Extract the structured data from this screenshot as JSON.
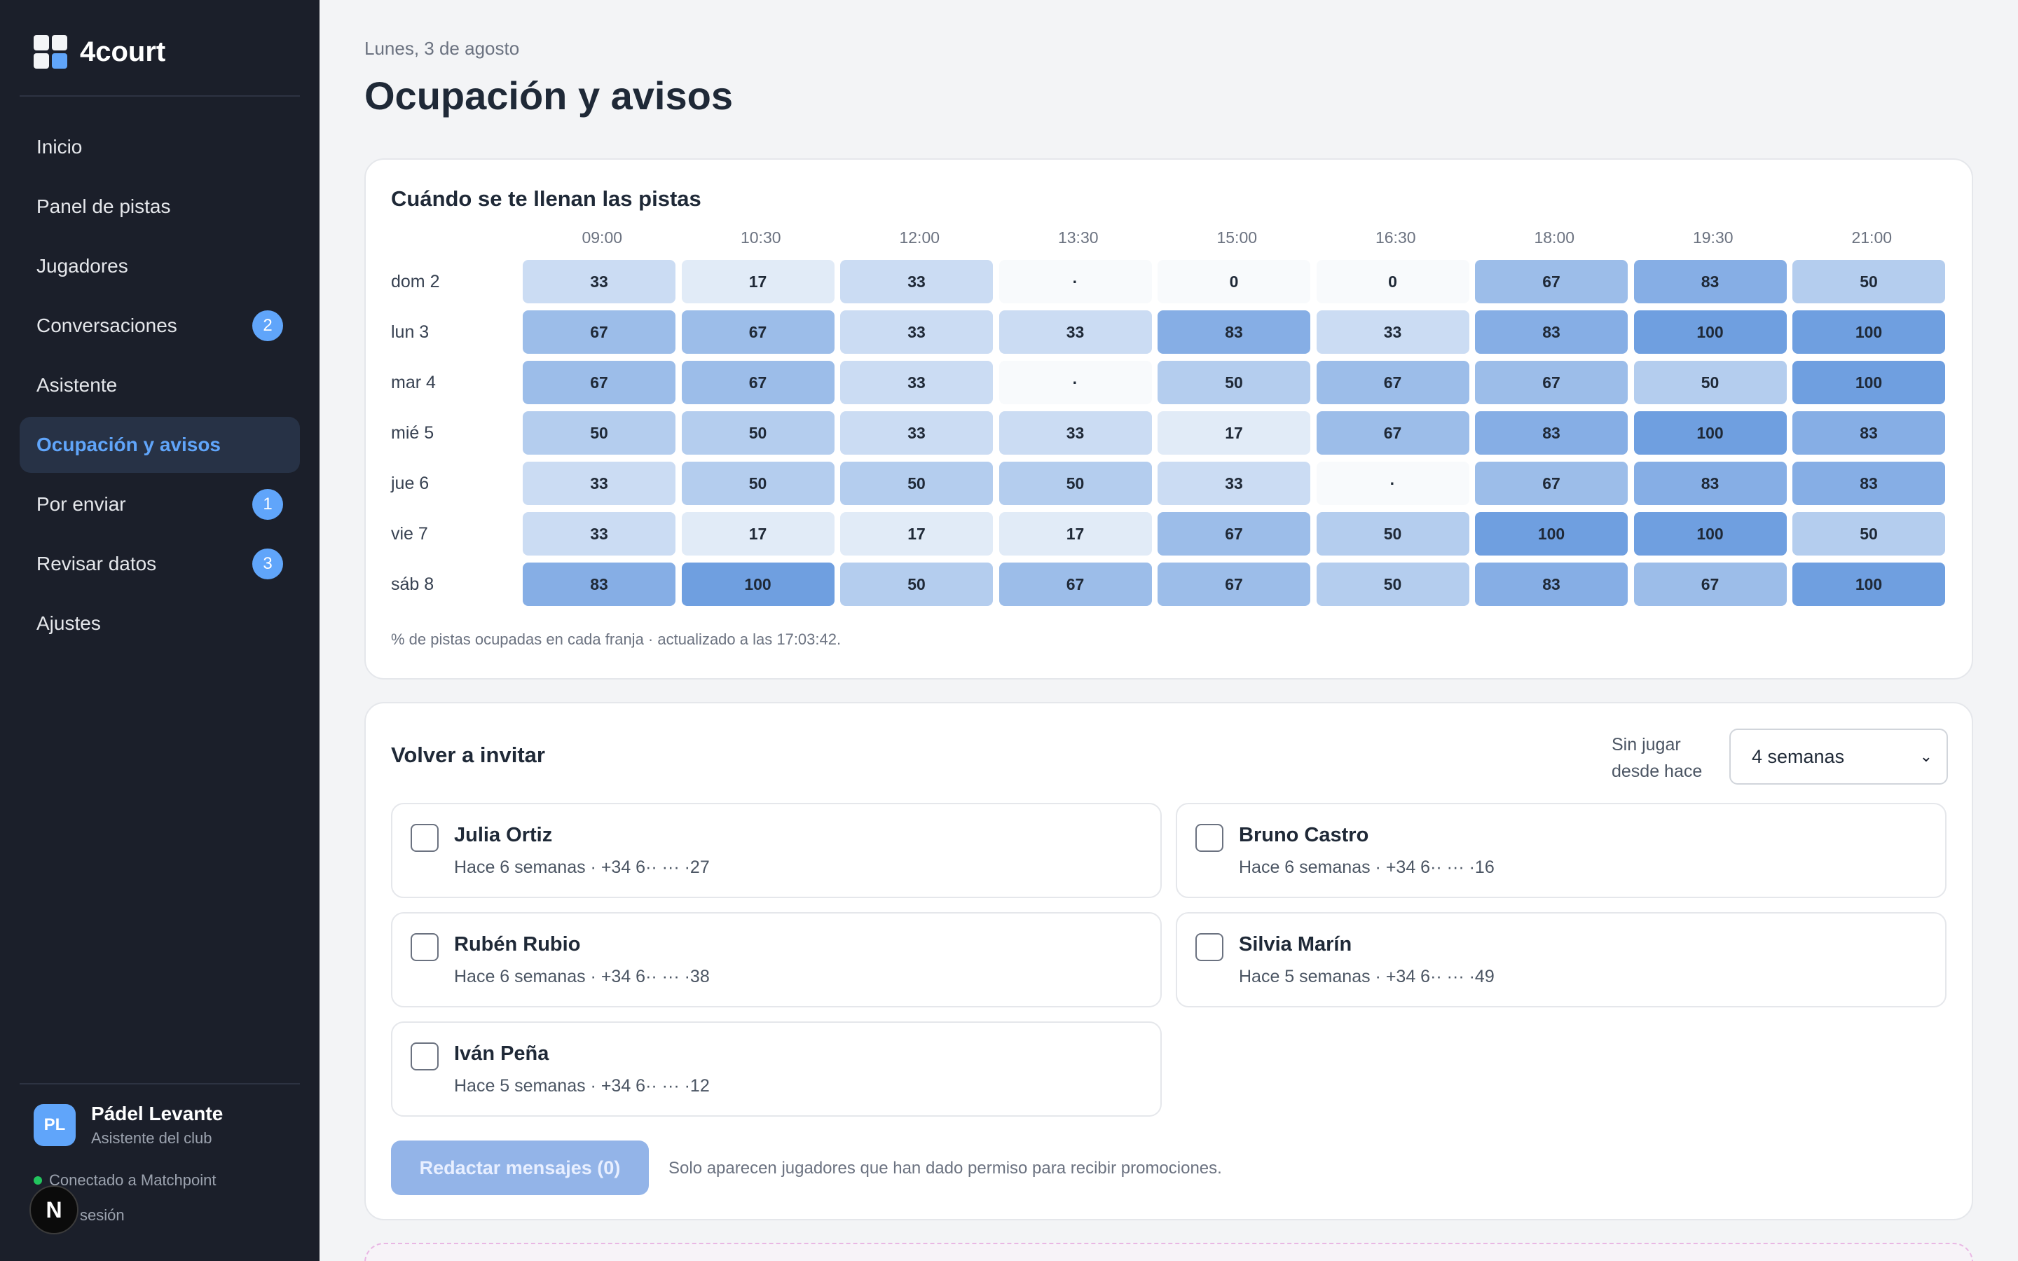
{
  "brand": {
    "name": "4court"
  },
  "nav": [
    {
      "label": "Inicio",
      "badge": ""
    },
    {
      "label": "Panel de pistas",
      "badge": ""
    },
    {
      "label": "Jugadores",
      "badge": ""
    },
    {
      "label": "Conversaciones",
      "badge": "2"
    },
    {
      "label": "Asistente",
      "badge": ""
    },
    {
      "label": "Ocupación y avisos",
      "badge": "",
      "active": true
    },
    {
      "label": "Por enviar",
      "badge": "1"
    },
    {
      "label": "Revisar datos",
      "badge": "3"
    },
    {
      "label": "Ajustes",
      "badge": ""
    }
  ],
  "club": {
    "initials": "PL",
    "name": "Pádel Levante",
    "role": "Asistente del club",
    "connection": "Conectado a Matchpoint",
    "logout": "sesión",
    "n_badge": "N"
  },
  "header": {
    "date": "Lunes, 3 de agosto",
    "title": "Ocupación y avisos"
  },
  "occupancy": {
    "title": "Cuándo se te llenan las pistas",
    "times": [
      "09:00",
      "10:30",
      "12:00",
      "13:30",
      "15:00",
      "16:30",
      "18:00",
      "19:30",
      "21:00"
    ],
    "rows": [
      {
        "day": "dom 2",
        "values": [
          "33",
          "17",
          "33",
          "·",
          "0",
          "0",
          "67",
          "83",
          "50"
        ]
      },
      {
        "day": "lun 3",
        "values": [
          "67",
          "67",
          "33",
          "33",
          "83",
          "33",
          "83",
          "100",
          "100"
        ]
      },
      {
        "day": "mar 4",
        "values": [
          "67",
          "67",
          "33",
          "·",
          "50",
          "67",
          "67",
          "50",
          "100"
        ]
      },
      {
        "day": "mié 5",
        "values": [
          "50",
          "50",
          "33",
          "33",
          "17",
          "67",
          "83",
          "100",
          "83"
        ]
      },
      {
        "day": "jue 6",
        "values": [
          "33",
          "50",
          "50",
          "50",
          "33",
          "·",
          "67",
          "83",
          "83"
        ]
      },
      {
        "day": "vie 7",
        "values": [
          "33",
          "17",
          "17",
          "17",
          "67",
          "50",
          "100",
          "100",
          "50"
        ]
      },
      {
        "day": "sáb 8",
        "values": [
          "83",
          "100",
          "50",
          "67",
          "67",
          "50",
          "83",
          "67",
          "100"
        ]
      }
    ],
    "note": "% de pistas ocupadas en cada franja · actualizado a las 17:03:42."
  },
  "reinvite": {
    "title": "Volver a invitar",
    "filter_label_1": "Sin jugar",
    "filter_label_2": "desde hace",
    "filter_value": "4 semanas",
    "players": [
      {
        "name": "Julia Ortiz",
        "meta": "Hace 6 semanas · +34 6·· ··· ·27"
      },
      {
        "name": "Bruno Castro",
        "meta": "Hace 6 semanas · +34 6·· ··· ·16"
      },
      {
        "name": "Rubén Rubio",
        "meta": "Hace 6 semanas · +34 6·· ··· ·38"
      },
      {
        "name": "Silvia Marín",
        "meta": "Hace 5 semanas · +34 6·· ··· ·49"
      },
      {
        "name": "Iván Peña",
        "meta": "Hace 5 semanas · +34 6·· ··· ·12"
      }
    ],
    "compose_label": "Redactar mensajes (0)",
    "compose_note": "Solo aparecen jugadores que han dado permiso para recibir promociones."
  },
  "colors": {
    "accent": "#60a5fa",
    "sidebar_bg": "#1b1f2a",
    "heat_low": "#f8fafc",
    "heat_high": "#6f9fe0"
  }
}
